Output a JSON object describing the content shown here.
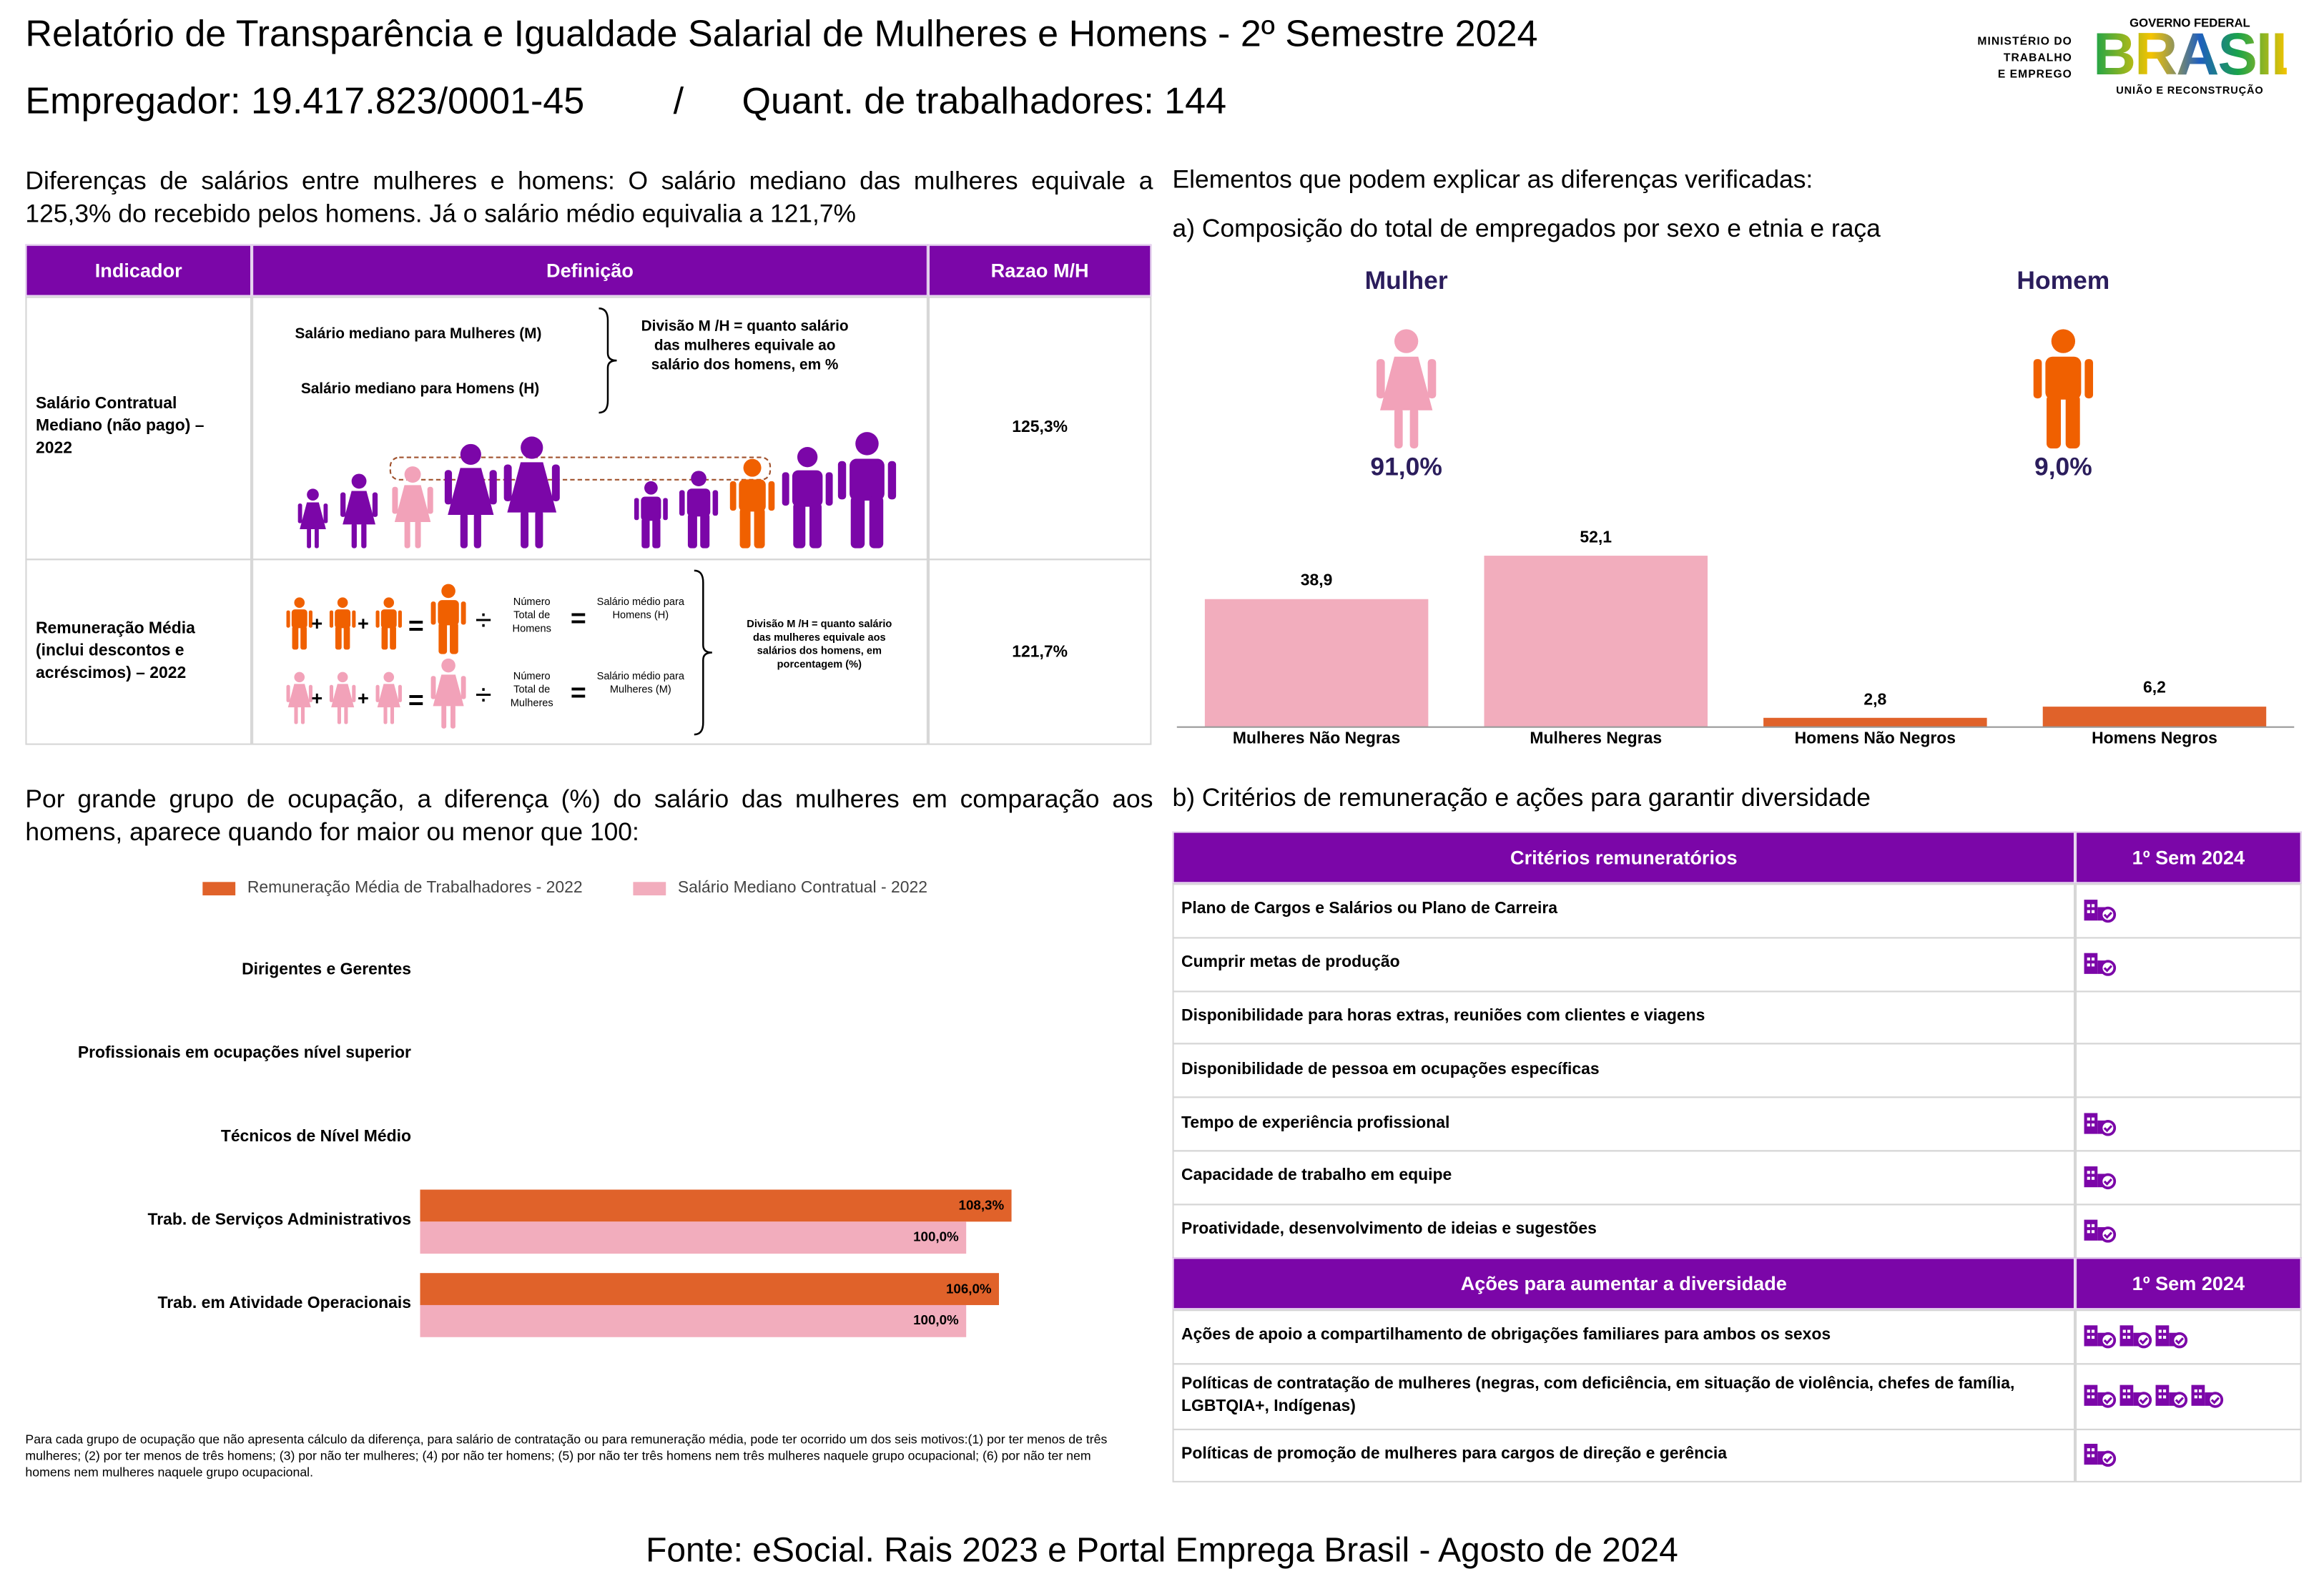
{
  "header": {
    "title": "Relatório de Transparência e Igualdade Salarial de Mulheres e Homens - 2º Semestre 2024",
    "employer": "Empregador: 19.417.823/0001-45",
    "separator": "/",
    "workers": "Quant. de trabalhadores: 144",
    "ministry": [
      "MINISTÉRIO DO",
      "TRABALHO",
      "E EMPREGO"
    ],
    "gov": "GOVERNO FEDERAL",
    "brand": "BRASIL",
    "tagline": "UNIÃO E RECONSTRUÇÃO"
  },
  "salary": {
    "intro": "Diferenças de salários entre mulheres e homens: O salário mediano das mulheres equivale a 125,3% do recebido pelos homens. Já o salário médio equivalia a 121,7%",
    "columns": [
      "Indicador",
      "Definição",
      "Razao M/H"
    ],
    "median": {
      "indicator": "Salário Contratual Mediano (não pago) – 2022",
      "women": "Salário mediano para Mulheres (M)",
      "men": "Salário mediano para Homens (H)",
      "division": "Divisão M /H = quanto salário das mulheres equivale ao salário dos homens, em %",
      "ratio": "125,3%"
    },
    "mean": {
      "indicator": "Remuneração Média (inclui descontos e acréscimos) – 2022",
      "men_count": "Número Total de Homens",
      "men_mean": "Salário médio para Homens (H)",
      "women_count": "Número Total de Mulheres",
      "women_mean": "Salário médio para Mulheres (M)",
      "division": "Divisão M /H = quanto salário das mulheres equivale aos salários dos homens, em porcentagem (%)",
      "ratio": "121,7%",
      "plus": "+",
      "divide": "÷",
      "equals": "="
    }
  },
  "composition": {
    "heading": "Elementos que podem explicar as diferenças verificadas:",
    "subheading": "a) Composição do total de empregados por sexo e etnia e raça",
    "women": {
      "label": "Mulher",
      "share": "91,0%"
    },
    "men": {
      "label": "Homem",
      "share": "9,0%"
    }
  },
  "occupation": {
    "heading": "Por grande grupo de ocupação, a diferença (%) do salário das mulheres em comparação aos homens, aparece quando for maior ou menor que 100:",
    "footnote": "Para cada grupo de ocupação que não apresenta cálculo da diferença, para salário de contratação ou para remuneração média, pode ter ocorrido um dos seis motivos:(1) por ter menos de três mulheres; (2) por ter menos de três homens; (3) por não ter mulheres; (4) por não ter homens; (5) por não ter três homens nem três mulheres naquele grupo ocupacional; (6) por não ter nem homens nem mulheres naquele grupo ocupacional."
  },
  "criteria": {
    "heading": "b) Critérios de remuneração e ações para garantir diversidade",
    "columns": [
      "Critérios remuneratórios",
      "1º Sem 2024"
    ],
    "rows": [
      {
        "label": "Plano de Cargos e Salários ou Plano de Carreira",
        "icons": 1
      },
      {
        "label": "Cumprir metas de produção",
        "icons": 1
      },
      {
        "label": "Disponibilidade para horas extras, reuniões com clientes e viagens",
        "icons": 0
      },
      {
        "label": "Disponibilidade de pessoa em ocupações específicas",
        "icons": 0
      },
      {
        "label": "Tempo de experiência profissional",
        "icons": 1
      },
      {
        "label": "Capacidade de trabalho em equipe",
        "icons": 1
      },
      {
        "label": "Proatividade, desenvolvimento de ideias e sugestões",
        "icons": 1
      }
    ],
    "actions_columns": [
      "Ações para aumentar a diversidade",
      "1º Sem 2024"
    ],
    "actions": [
      {
        "label": "Ações de apoio a compartilhamento de obrigações familiares para ambos os sexos",
        "icons": 3
      },
      {
        "label": "Políticas de contratação de mulheres (negras, com deficiência, em situação de violência, chefes de família, LGBTQIA+, Indígenas)",
        "icons": 4
      },
      {
        "label": "Políticas de promoção de mulheres para cargos de direção e gerência",
        "icons": 1
      }
    ]
  },
  "footer": "Fonte: eSocial. Rais 2023 e Portal Emprega Brasil - Agosto de 2024",
  "chart_data": [
    {
      "type": "bar",
      "categories": [
        "Mulheres Não Negras",
        "Mulheres Negras",
        "Homens Não Negros",
        "Homens Negros"
      ],
      "values": [
        38.9,
        52.1,
        2.8,
        6.2
      ],
      "value_labels": [
        "38,9",
        "52,1",
        "2,8",
        "6,2"
      ],
      "colors": [
        "#f2adbd",
        "#f2adbd",
        "#e0622a",
        "#e0622a"
      ]
    },
    {
      "type": "barh",
      "categories": [
        "Dirigentes e Gerentes",
        "Profissionais em ocupações nível superior",
        "Técnicos de Nível Médio",
        "Trab. de Serviços Administrativos",
        "Trab. em Atividade Operacionais"
      ],
      "series": [
        {
          "name": "Remuneração Média de Trabalhadores - 2022",
          "color": "#e0622a",
          "values": [
            null,
            null,
            null,
            108.3,
            106.0
          ],
          "value_labels": [
            null,
            null,
            null,
            "108,3%",
            "106,0%"
          ]
        },
        {
          "name": "Salário Mediano Contratual - 2022",
          "color": "#f2adbd",
          "values": [
            null,
            null,
            null,
            100.0,
            100.0
          ],
          "value_labels": [
            null,
            null,
            null,
            "100,0%",
            "100,0%"
          ]
        }
      ],
      "legend": "top"
    }
  ]
}
